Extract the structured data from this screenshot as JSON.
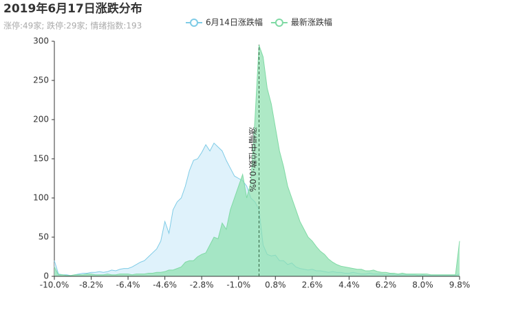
{
  "chart_data": {
    "type": "area",
    "title": "2019年6月17日涨跌分布",
    "subtitle": "涨停:49家; 跌停:29家; 情绪指数:193",
    "x": [
      -10.0,
      -9.8,
      -9.6,
      -9.4,
      -9.2,
      -9.0,
      -8.8,
      -8.6,
      -8.4,
      -8.2,
      -8.0,
      -7.8,
      -7.6,
      -7.4,
      -7.2,
      -7.0,
      -6.8,
      -6.6,
      -6.4,
      -6.2,
      -6.0,
      -5.8,
      -5.6,
      -5.4,
      -5.2,
      -5.0,
      -4.8,
      -4.6,
      -4.4,
      -4.2,
      -4.0,
      -3.8,
      -3.6,
      -3.4,
      -3.2,
      -3.0,
      -2.8,
      -2.6,
      -2.4,
      -2.2,
      -2.0,
      -1.8,
      -1.6,
      -1.4,
      -1.2,
      -1.0,
      -0.8,
      -0.6,
      -0.4,
      -0.2,
      0.0,
      0.2,
      0.4,
      0.6,
      0.8,
      1.0,
      1.2,
      1.4,
      1.6,
      1.8,
      2.0,
      2.2,
      2.4,
      2.6,
      2.8,
      3.0,
      3.2,
      3.4,
      3.6,
      3.8,
      4.0,
      4.2,
      4.4,
      4.6,
      4.8,
      5.0,
      5.2,
      5.4,
      5.6,
      5.8,
      6.0,
      6.2,
      6.4,
      6.6,
      6.8,
      7.0,
      7.2,
      7.4,
      7.6,
      7.8,
      8.0,
      8.2,
      8.4,
      8.6,
      8.8,
      9.0,
      9.2,
      9.4,
      9.6,
      9.8
    ],
    "series": [
      {
        "name": "6月14日涨跌幅",
        "color": "#7ecbe6",
        "fill": "#dcf1fb",
        "values": [
          20,
          3,
          2,
          2,
          1,
          2,
          3,
          4,
          4,
          5,
          5,
          6,
          5,
          6,
          8,
          7,
          9,
          10,
          10,
          12,
          15,
          18,
          20,
          25,
          30,
          35,
          45,
          70,
          55,
          85,
          95,
          100,
          115,
          135,
          148,
          150,
          158,
          168,
          160,
          170,
          165,
          160,
          148,
          138,
          128,
          125,
          122,
          115,
          100,
          95,
          85,
          40,
          28,
          26,
          27,
          20,
          20,
          15,
          17,
          12,
          10,
          9,
          8,
          9,
          7,
          7,
          6,
          5,
          6,
          5,
          5,
          4,
          4,
          5,
          4,
          3,
          3,
          4,
          3,
          3,
          3,
          2,
          3,
          2,
          2,
          2,
          2,
          2,
          2,
          1,
          2,
          1,
          1,
          1,
          1,
          1,
          1,
          1,
          1,
          3
        ]
      },
      {
        "name": "最新涨跌幅",
        "color": "#7fd9a4",
        "fill": "#8fe0b0",
        "values": [
          12,
          2,
          2,
          1,
          1,
          2,
          2,
          2,
          3,
          3,
          2,
          2,
          2,
          3,
          2,
          2,
          3,
          3,
          3,
          2,
          3,
          3,
          3,
          4,
          4,
          5,
          5,
          6,
          8,
          8,
          10,
          12,
          18,
          20,
          20,
          25,
          28,
          30,
          40,
          50,
          48,
          68,
          60,
          85,
          100,
          115,
          130,
          100,
          120,
          200,
          295,
          280,
          240,
          220,
          190,
          160,
          140,
          115,
          100,
          85,
          70,
          60,
          50,
          45,
          38,
          32,
          28,
          22,
          18,
          15,
          13,
          12,
          11,
          10,
          9,
          9,
          7,
          7,
          8,
          6,
          5,
          5,
          4,
          4,
          3,
          4,
          3,
          3,
          3,
          3,
          3,
          3,
          2,
          2,
          2,
          2,
          2,
          2,
          2,
          45
        ]
      }
    ],
    "markline": {
      "value": 0,
      "label": "涨幅中位数:0.0%"
    },
    "xlim": [
      -10.0,
      9.8
    ],
    "xticks": [
      {
        "value": -10.0,
        "label": "-10.0%"
      },
      {
        "value": -8.2,
        "label": "-8.2%"
      },
      {
        "value": -6.4,
        "label": "-6.4%"
      },
      {
        "value": -4.6,
        "label": "-4.6%"
      },
      {
        "value": -2.8,
        "label": "-2.8%"
      },
      {
        "value": -1.0,
        "label": "-1.0%"
      },
      {
        "value": 0.8,
        "label": "0.8%"
      },
      {
        "value": 2.6,
        "label": "2.6%"
      },
      {
        "value": 4.4,
        "label": "4.4%"
      },
      {
        "value": 6.2,
        "label": "6.2%"
      },
      {
        "value": 8.0,
        "label": "8.0%"
      },
      {
        "value": 9.8,
        "label": "9.8%"
      }
    ],
    "ylim": [
      0,
      300
    ],
    "yticks": [
      0,
      50,
      100,
      150,
      200,
      250,
      300
    ]
  }
}
